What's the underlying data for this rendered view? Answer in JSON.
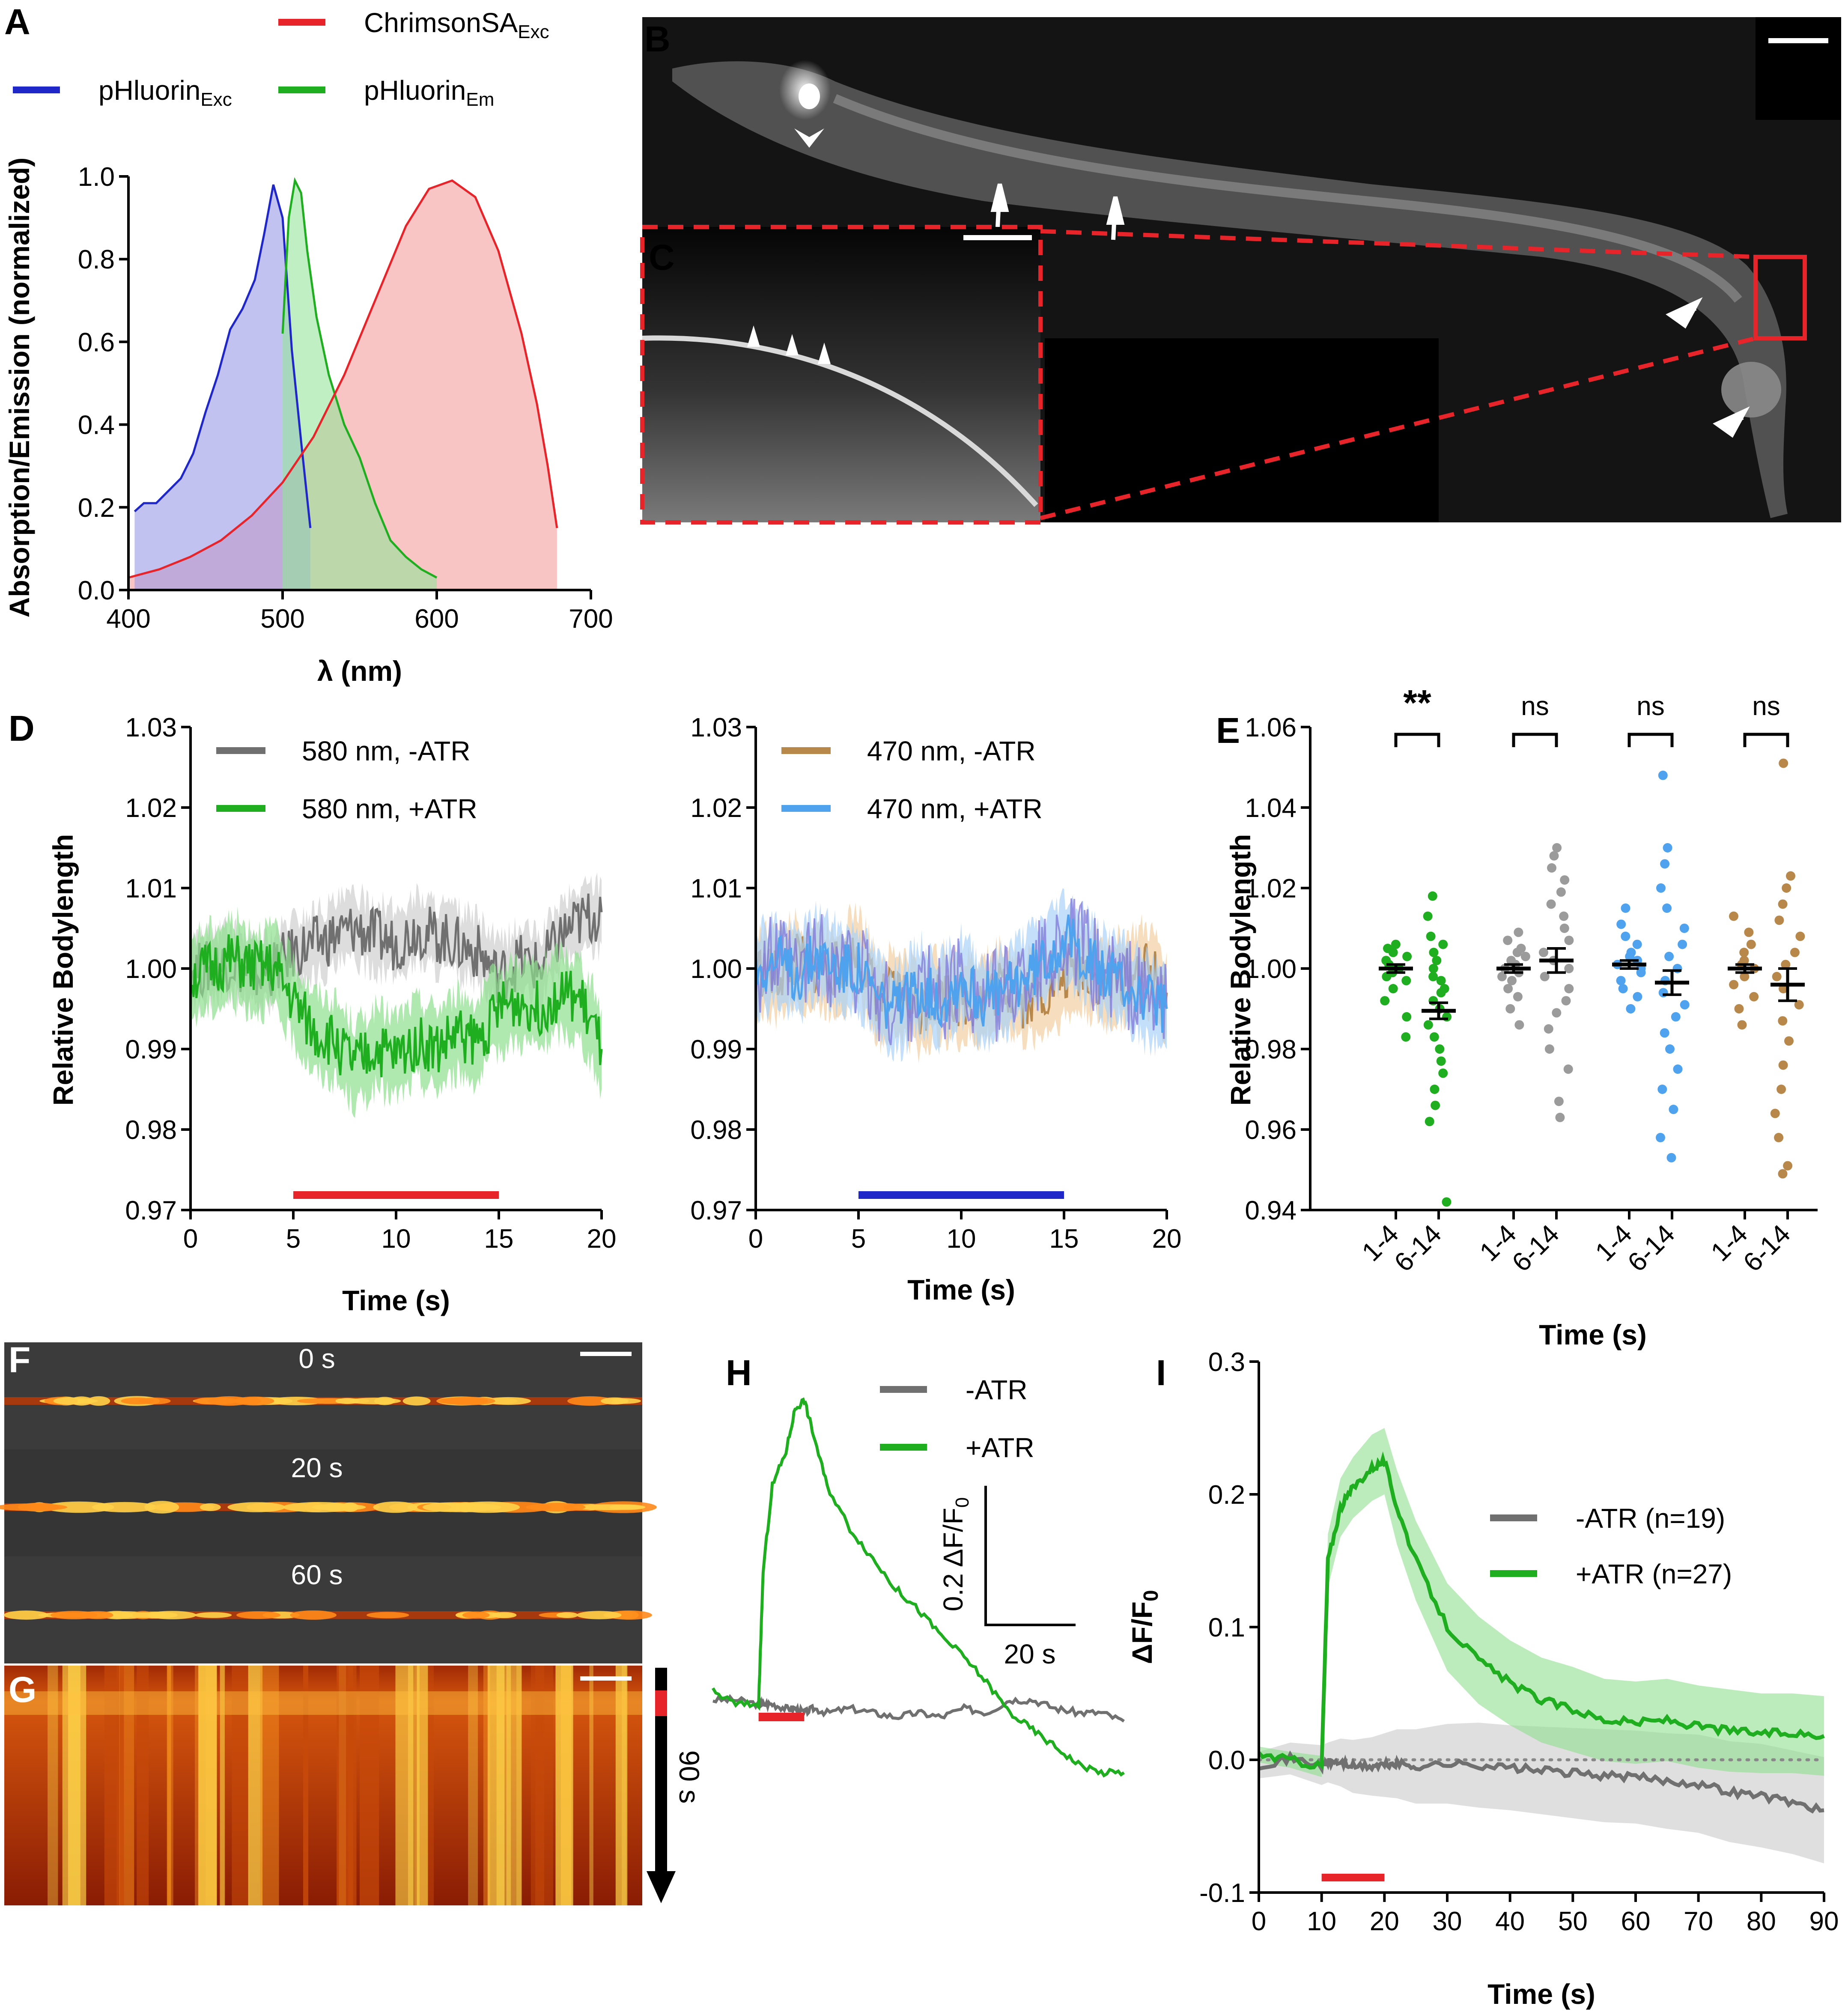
{
  "panels": {
    "A": "A",
    "B": "B",
    "C": "C",
    "D": "D",
    "E": "E",
    "F": "F",
    "G": "G",
    "H": "H",
    "I": "I"
  },
  "colors": {
    "red": "#e8242b",
    "blue": "#1f27c9",
    "green": "#1fae1f",
    "gray": "#707070",
    "lightgray": "#9b9b9b",
    "skyblue": "#4fa3ee",
    "tan": "#b8874a",
    "purple": "#7b6fd6"
  },
  "chart_data": [
    {
      "id": "A",
      "type": "area",
      "xlabel": "λ (nm)",
      "ylabel": "Absorption/Emission (normalized)",
      "xlim": [
        400,
        700
      ],
      "ylim": [
        0,
        1.0
      ],
      "xticks": [
        "400",
        "500",
        "600",
        "700"
      ],
      "yticks": [
        "0.0",
        "0.2",
        "0.4",
        "0.6",
        "0.8",
        "1.0"
      ],
      "legend": [
        {
          "name": "ChrimsonSA",
          "sub": "Exc",
          "color": "#e8242b"
        },
        {
          "name": "pHluorin",
          "sub": "Exc",
          "color": "#1f27c9"
        },
        {
          "name": "pHluorin",
          "sub": "Em",
          "color": "#1fae1f"
        }
      ],
      "series": [
        {
          "name": "pHluorin Exc",
          "color": "#1f27c9",
          "x": [
            404,
            410,
            418,
            426,
            434,
            442,
            450,
            458,
            466,
            474,
            482,
            488,
            494,
            500,
            506,
            512,
            518
          ],
          "y": [
            0.19,
            0.21,
            0.21,
            0.24,
            0.27,
            0.33,
            0.43,
            0.52,
            0.63,
            0.68,
            0.75,
            0.86,
            0.98,
            0.9,
            0.58,
            0.36,
            0.15
          ]
        },
        {
          "name": "pHluorin Em",
          "color": "#1fae1f",
          "x": [
            500,
            504,
            508,
            512,
            516,
            522,
            530,
            540,
            550,
            560,
            570,
            580,
            590,
            600
          ],
          "y": [
            0.62,
            0.9,
            0.99,
            0.96,
            0.82,
            0.66,
            0.52,
            0.4,
            0.32,
            0.21,
            0.12,
            0.08,
            0.05,
            0.03
          ]
        },
        {
          "name": "ChrimsonSA Exc",
          "color": "#e8242b",
          "x": [
            400,
            420,
            440,
            460,
            480,
            500,
            520,
            540,
            560,
            580,
            595,
            610,
            625,
            640,
            655,
            665,
            672,
            678
          ],
          "y": [
            0.03,
            0.05,
            0.08,
            0.12,
            0.18,
            0.26,
            0.37,
            0.52,
            0.7,
            0.88,
            0.97,
            0.99,
            0.95,
            0.82,
            0.62,
            0.45,
            0.3,
            0.15
          ]
        }
      ]
    },
    {
      "id": "D-left",
      "type": "line",
      "xlabel": "Time (s)",
      "ylabel": "Relative Bodylength",
      "xlim": [
        0,
        20
      ],
      "ylim": [
        0.97,
        1.03
      ],
      "xticks": [
        "0",
        "5",
        "10",
        "15",
        "20"
      ],
      "yticks": [
        "0.97",
        "0.98",
        "0.99",
        "1.00",
        "1.01",
        "1.02",
        "1.03"
      ],
      "stimulus": {
        "from": 5,
        "to": 15,
        "color": "#e8242b"
      },
      "series": [
        {
          "name": "580 nm, -ATR",
          "color": "#707070",
          "band": 0.004,
          "x": [
            0,
            1,
            2,
            3,
            4,
            5,
            6,
            7,
            8,
            9,
            10,
            11,
            12,
            13,
            14,
            15,
            16,
            17,
            18,
            19,
            20
          ],
          "y": [
            1.0,
            1.0,
            1.001,
            0.999,
            1.0,
            1.002,
            1.003,
            1.004,
            1.005,
            1.004,
            1.003,
            1.005,
            1.004,
            1.003,
            1.002,
            0.999,
            1.001,
            1.0,
            1.004,
            1.006,
            1.007
          ]
        },
        {
          "name": "580 nm, +ATR",
          "color": "#1fae1f",
          "band": 0.005,
          "x": [
            0,
            1,
            2,
            3,
            4,
            5,
            6,
            7,
            8,
            9,
            10,
            11,
            12,
            13,
            14,
            15,
            16,
            17,
            18,
            19,
            20
          ],
          "y": [
            0.999,
            1.0,
            1.001,
            1.0,
            1.0,
            0.996,
            0.992,
            0.991,
            0.988,
            0.99,
            0.989,
            0.991,
            0.99,
            0.992,
            0.991,
            0.995,
            0.996,
            0.995,
            0.997,
            0.996,
            0.99
          ]
        }
      ],
      "legend_entries": [
        "580 nm, -ATR",
        "580 nm, +ATR"
      ]
    },
    {
      "id": "D-right",
      "type": "line",
      "xlabel": "Time (s)",
      "ylabel": "",
      "xlim": [
        0,
        20
      ],
      "ylim": [
        0.97,
        1.03
      ],
      "xticks": [
        "0",
        "5",
        "10",
        "15",
        "20"
      ],
      "yticks": [
        "0.97",
        "0.98",
        "0.99",
        "1.00",
        "1.01",
        "1.02",
        "1.03"
      ],
      "stimulus": {
        "from": 5,
        "to": 15,
        "color": "#1f27c9"
      },
      "series": [
        {
          "name": "470 nm, -ATR",
          "color": "#b8874a",
          "band": 0.005,
          "x": [
            0,
            1,
            2,
            3,
            4,
            5,
            6,
            7,
            8,
            9,
            10,
            11,
            12,
            13,
            14,
            15,
            16,
            17,
            18,
            19,
            20
          ],
          "y": [
            1.0,
            0.999,
            1.001,
            1.0,
            1.0,
            1.002,
            0.996,
            0.997,
            0.995,
            0.997,
            0.996,
            0.996,
            0.998,
            0.996,
            0.997,
            0.999,
            1.0,
            0.998,
            0.999,
            1.0,
            0.997
          ]
        },
        {
          "name": "470 nm, +ATR",
          "color": "#4fa3ee",
          "band": 0.005,
          "x": [
            0,
            1,
            2,
            3,
            4,
            5,
            6,
            7,
            8,
            9,
            10,
            11,
            12,
            13,
            14,
            15,
            16,
            17,
            18,
            19,
            20
          ],
          "y": [
            1.0,
            1.001,
            0.999,
            1.002,
            1.0,
            1.0,
            0.996,
            0.995,
            0.998,
            0.996,
            0.999,
            0.996,
            0.997,
            0.999,
            1.001,
            1.004,
            1.002,
            0.999,
            0.998,
            0.996,
            0.995
          ]
        }
      ],
      "legend_entries": [
        "470 nm, -ATR",
        "470 nm, +ATR"
      ]
    },
    {
      "id": "E",
      "type": "scatter",
      "xlabel": "Time (s)",
      "ylabel": "Relative Bodylength",
      "ylim": [
        0.94,
        1.06
      ],
      "yticks": [
        "0.94",
        "0.96",
        "0.98",
        "1.00",
        "1.02",
        "1.04",
        "1.06"
      ],
      "categories": [
        "1-4",
        "6-14",
        "1-4",
        "6-14",
        "1-4",
        "6-14",
        "1-4",
        "6-14"
      ],
      "significance": [
        "**",
        "ns",
        "ns",
        "ns"
      ],
      "groups": [
        {
          "color": "#1fae1f",
          "mean": 1.0,
          "sem": 0.001,
          "points": [
            0.983,
            0.988,
            0.992,
            0.995,
            0.997,
            0.998,
            0.999,
            1.0,
            1.0,
            1.001,
            1.002,
            1.003,
            1.004,
            1.005,
            1.006
          ]
        },
        {
          "color": "#1fae1f",
          "mean": 0.9895,
          "sem": 0.002,
          "points": [
            0.942,
            0.962,
            0.966,
            0.97,
            0.974,
            0.977,
            0.98,
            0.983,
            0.986,
            0.988,
            0.99,
            0.992,
            0.994,
            0.995,
            0.997,
            0.998,
            1.0,
            1.002,
            1.004,
            1.006,
            1.008,
            1.013,
            1.018
          ]
        },
        {
          "color": "#9b9b9b",
          "mean": 1.0,
          "sem": 0.001,
          "points": [
            0.986,
            0.99,
            0.993,
            0.995,
            0.997,
            0.998,
            0.999,
            1.0,
            1.001,
            1.002,
            1.003,
            1.004,
            1.005,
            1.007,
            1.009
          ]
        },
        {
          "color": "#9b9b9b",
          "mean": 1.002,
          "sem": 0.003,
          "points": [
            0.963,
            0.967,
            0.975,
            0.98,
            0.985,
            0.989,
            0.992,
            0.995,
            0.998,
            1.0,
            1.002,
            1.004,
            1.007,
            1.01,
            1.013,
            1.016,
            1.019,
            1.022,
            1.025,
            1.028,
            1.03
          ]
        },
        {
          "color": "#4fa3ee",
          "mean": 1.001,
          "sem": 0.001,
          "points": [
            0.99,
            0.993,
            0.995,
            0.997,
            0.999,
            1.0,
            1.001,
            1.002,
            1.003,
            1.004,
            1.006,
            1.008,
            1.011,
            1.015
          ]
        },
        {
          "color": "#4fa3ee",
          "mean": 0.9965,
          "sem": 0.003,
          "points": [
            0.953,
            0.958,
            0.965,
            0.97,
            0.975,
            0.98,
            0.984,
            0.988,
            0.991,
            0.994,
            0.997,
            1.0,
            1.003,
            1.006,
            1.01,
            1.015,
            1.02,
            1.026,
            1.03,
            1.048
          ]
        },
        {
          "color": "#b8874a",
          "mean": 1.0,
          "sem": 0.001,
          "points": [
            0.986,
            0.99,
            0.993,
            0.996,
            0.998,
            1.0,
            1.001,
            1.002,
            1.004,
            1.006,
            1.009,
            1.013
          ]
        },
        {
          "color": "#b8874a",
          "mean": 0.996,
          "sem": 0.004,
          "points": [
            0.949,
            0.951,
            0.958,
            0.964,
            0.97,
            0.976,
            0.982,
            0.987,
            0.991,
            0.995,
            0.998,
            1.001,
            1.004,
            1.008,
            1.012,
            1.016,
            1.02,
            1.023,
            1.051
          ]
        }
      ]
    },
    {
      "id": "H",
      "type": "line",
      "scalebar": {
        "y_label": "0.2 ΔF/F0",
        "x_label": "20 s"
      },
      "stimulus_color": "#e8242b",
      "x": [
        0,
        5,
        10,
        11,
        13,
        16,
        18,
        20,
        22,
        25,
        30,
        35,
        40,
        45,
        50,
        55,
        60,
        65,
        70,
        75,
        80,
        85,
        90
      ],
      "series": [
        {
          "name": "-ATR",
          "color": "#707070",
          "y": [
            0.0,
            0.0,
            -0.01,
            -0.01,
            -0.01,
            -0.02,
            -0.02,
            -0.03,
            -0.02,
            -0.03,
            -0.02,
            -0.03,
            -0.04,
            -0.03,
            -0.04,
            -0.02,
            -0.03,
            0.0,
            0.0,
            -0.02,
            -0.03,
            -0.03,
            -0.05
          ]
        },
        {
          "name": "+ATR",
          "color": "#1fae1f",
          "y": [
            0.02,
            -0.01,
            -0.01,
            0.3,
            0.5,
            0.58,
            0.68,
            0.7,
            0.62,
            0.5,
            0.4,
            0.33,
            0.26,
            0.21,
            0.15,
            0.1,
            0.04,
            -0.03,
            -0.07,
            -0.11,
            -0.15,
            -0.17,
            -0.17
          ]
        }
      ]
    },
    {
      "id": "I",
      "type": "line",
      "xlabel": "Time (s)",
      "ylabel": "ΔF/F0",
      "xlim": [
        0,
        90
      ],
      "ylim": [
        -0.1,
        0.3
      ],
      "xticks": [
        "0",
        "10",
        "20",
        "30",
        "40",
        "50",
        "60",
        "70",
        "80",
        "90"
      ],
      "yticks": [
        "-0.1",
        "0.0",
        "0.1",
        "0.2",
        "0.3"
      ],
      "stimulus": {
        "from": 10,
        "to": 20,
        "color": "#e8242b"
      },
      "x": [
        0,
        5,
        10,
        11,
        13,
        15,
        18,
        20,
        22,
        25,
        30,
        35,
        40,
        45,
        50,
        55,
        60,
        65,
        70,
        75,
        80,
        85,
        90
      ],
      "series": [
        {
          "name": "-ATR (n=19)",
          "color": "#707070",
          "y": [
            -0.004,
            0.001,
            -0.004,
            -0.002,
            -0.002,
            -0.005,
            -0.005,
            -0.004,
            -0.003,
            -0.005,
            -0.003,
            -0.004,
            -0.006,
            -0.008,
            -0.01,
            -0.012,
            -0.013,
            -0.016,
            -0.018,
            -0.024,
            -0.027,
            -0.032,
            -0.038
          ],
          "band": [
            0.01,
            0.012,
            0.015,
            0.015,
            0.018,
            0.02,
            0.022,
            0.024,
            0.026,
            0.028,
            0.03,
            0.032,
            0.032,
            0.033,
            0.034,
            0.035,
            0.035,
            0.036,
            0.037,
            0.038,
            0.039,
            0.039,
            0.04
          ]
        },
        {
          "name": "+ATR (n=27)",
          "color": "#1fae1f",
          "y": [
            0.004,
            0.0,
            -0.005,
            0.15,
            0.19,
            0.205,
            0.22,
            0.225,
            0.19,
            0.15,
            0.1,
            0.075,
            0.058,
            0.045,
            0.038,
            0.03,
            0.028,
            0.03,
            0.025,
            0.022,
            0.02,
            0.02,
            0.018
          ],
          "band": [
            0.006,
            0.006,
            0.008,
            0.02,
            0.022,
            0.023,
            0.025,
            0.025,
            0.028,
            0.03,
            0.033,
            0.033,
            0.032,
            0.032,
            0.032,
            0.031,
            0.031,
            0.031,
            0.031,
            0.031,
            0.03,
            0.03,
            0.03
          ]
        }
      ]
    }
  ],
  "images": {
    "F_times": [
      "0 s",
      "20 s",
      "60 s"
    ],
    "G_timebar": "90 s"
  },
  "legends": {
    "A_chrimson": "ChrimsonSA",
    "A_chrimson_sub": "Exc",
    "A_ph_exc": "pHluorin",
    "A_ph_exc_sub": "Exc",
    "A_ph_em": "pHluorin",
    "A_ph_em_sub": "Em",
    "H_minus": "-ATR",
    "H_plus": "+ATR",
    "H_scale_y": "0.2 ΔF/F",
    "H_scale_y_sub": "0",
    "H_scale_x": "20 s",
    "I_minus": "-ATR (n=19)",
    "I_plus": "+ATR (n=27)",
    "I_ylabel": "ΔF/F",
    "I_ylabel_sub": "0"
  }
}
